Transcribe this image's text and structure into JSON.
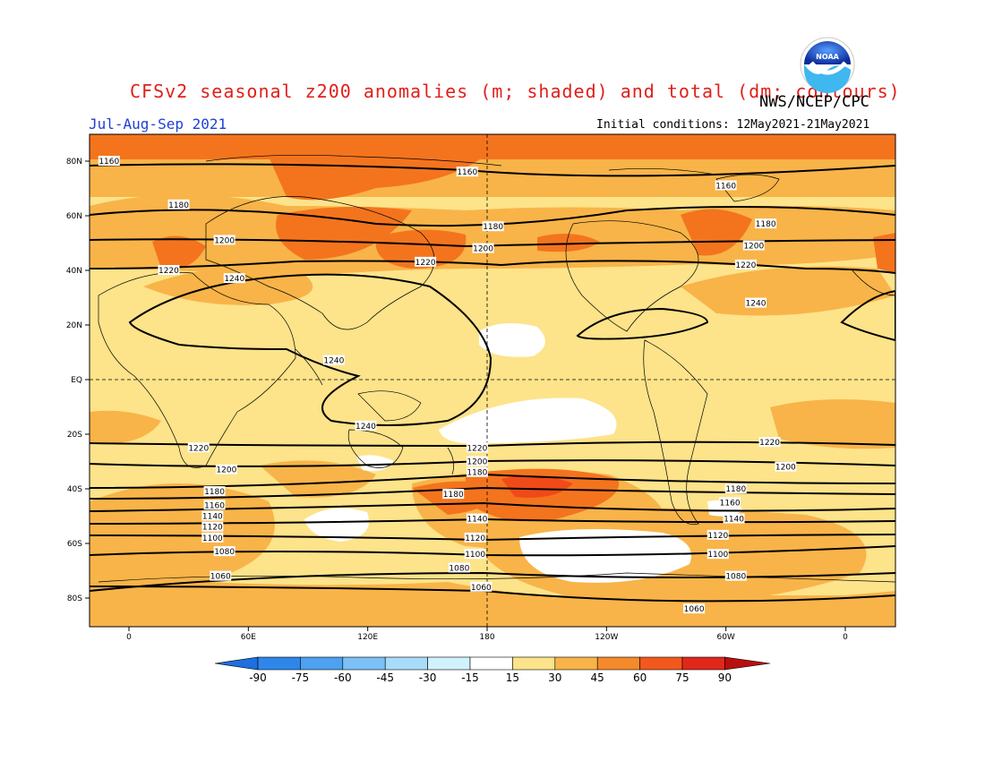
{
  "header": {
    "title": "CFSv2 seasonal z200 anomalies (m; shaded) and total (dm; contours)",
    "agency": "NWS/NCEP/CPC",
    "period": "Jul-Aug-Sep 2021",
    "initial_conditions": "Initial conditions: 12May2021-21May2021"
  },
  "axes": {
    "lat_labels": [
      {
        "text": "80N",
        "lat": 80
      },
      {
        "text": "60N",
        "lat": 60
      },
      {
        "text": "40N",
        "lat": 40
      },
      {
        "text": "20N",
        "lat": 20
      },
      {
        "text": "EQ",
        "lat": 0
      },
      {
        "text": "20S",
        "lat": -20
      },
      {
        "text": "40S",
        "lat": -40
      },
      {
        "text": "60S",
        "lat": -60
      },
      {
        "text": "80S",
        "lat": -80
      }
    ],
    "lon_labels": [
      {
        "text": "0",
        "lon": 0
      },
      {
        "text": "60E",
        "lon": 60
      },
      {
        "text": "120E",
        "lon": 120
      },
      {
        "text": "180",
        "lon": 180
      },
      {
        "text": "120W",
        "lon": 240
      },
      {
        "text": "60W",
        "lon": 300
      },
      {
        "text": "0",
        "lon": 360
      }
    ]
  },
  "colorbar": {
    "ticks": [
      "-90",
      "-75",
      "-60",
      "-45",
      "-30",
      "-15",
      "15",
      "30",
      "45",
      "60",
      "75",
      "90"
    ],
    "colors": [
      "#1e6fe0",
      "#2f86ea",
      "#4ea0f0",
      "#7cc0f6",
      "#a8dcfa",
      "#cff2fc",
      "#ffffff",
      "#fde38a",
      "#f8b448",
      "#f48a2a",
      "#f2581c",
      "#e0281a",
      "#b80f0f"
    ]
  },
  "contour_labels": [
    {
      "text": "1160",
      "lon": -10,
      "lat": 80
    },
    {
      "text": "1160",
      "lon": 170,
      "lat": 76
    },
    {
      "text": "1160",
      "lon": 300,
      "lat": 71
    },
    {
      "text": "1180",
      "lon": 25,
      "lat": 64
    },
    {
      "text": "1180",
      "lon": 183,
      "lat": 56
    },
    {
      "text": "1180",
      "lon": 320,
      "lat": 57
    },
    {
      "text": "1200",
      "lon": 48,
      "lat": 51
    },
    {
      "text": "1200",
      "lon": 178,
      "lat": 48
    },
    {
      "text": "1200",
      "lon": 314,
      "lat": 49
    },
    {
      "text": "1220",
      "lon": 20,
      "lat": 40
    },
    {
      "text": "1220",
      "lon": 149,
      "lat": 43
    },
    {
      "text": "1220",
      "lon": 310,
      "lat": 42
    },
    {
      "text": "1240",
      "lon": 53,
      "lat": 37
    },
    {
      "text": "1240",
      "lon": 103,
      "lat": 7
    },
    {
      "text": "1240",
      "lon": 119,
      "lat": -17
    },
    {
      "text": "1240",
      "lon": 315,
      "lat": 28
    },
    {
      "text": "1220",
      "lon": 35,
      "lat": -25
    },
    {
      "text": "1220",
      "lon": 175,
      "lat": -25
    },
    {
      "text": "1220",
      "lon": 322,
      "lat": -23
    },
    {
      "text": "1200",
      "lon": 49,
      "lat": -33
    },
    {
      "text": "1200",
      "lon": 175,
      "lat": -30
    },
    {
      "text": "1200",
      "lon": 330,
      "lat": -32
    },
    {
      "text": "1180",
      "lon": 43,
      "lat": -41
    },
    {
      "text": "1180",
      "lon": 175,
      "lat": -34
    },
    {
      "text": "1180",
      "lon": 163,
      "lat": -42
    },
    {
      "text": "1180",
      "lon": 305,
      "lat": -40
    },
    {
      "text": "1160",
      "lon": 43,
      "lat": -46
    },
    {
      "text": "1160",
      "lon": 302,
      "lat": -45
    },
    {
      "text": "1140",
      "lon": 42,
      "lat": -50
    },
    {
      "text": "1140",
      "lon": 175,
      "lat": -51
    },
    {
      "text": "1140",
      "lon": 304,
      "lat": -51
    },
    {
      "text": "1120",
      "lon": 42,
      "lat": -54
    },
    {
      "text": "1120",
      "lon": 174,
      "lat": -58
    },
    {
      "text": "1120",
      "lon": 296,
      "lat": -57
    },
    {
      "text": "1100",
      "lon": 42,
      "lat": -58
    },
    {
      "text": "1100",
      "lon": 174,
      "lat": -64
    },
    {
      "text": "1100",
      "lon": 296,
      "lat": -64
    },
    {
      "text": "1080",
      "lon": 48,
      "lat": -63
    },
    {
      "text": "1080",
      "lon": 166,
      "lat": -69
    },
    {
      "text": "1080",
      "lon": 305,
      "lat": -72
    },
    {
      "text": "1060",
      "lon": 46,
      "lat": -72
    },
    {
      "text": "1060",
      "lon": 177,
      "lat": -76
    },
    {
      "text": "1060",
      "lon": 284,
      "lat": -84
    }
  ]
}
